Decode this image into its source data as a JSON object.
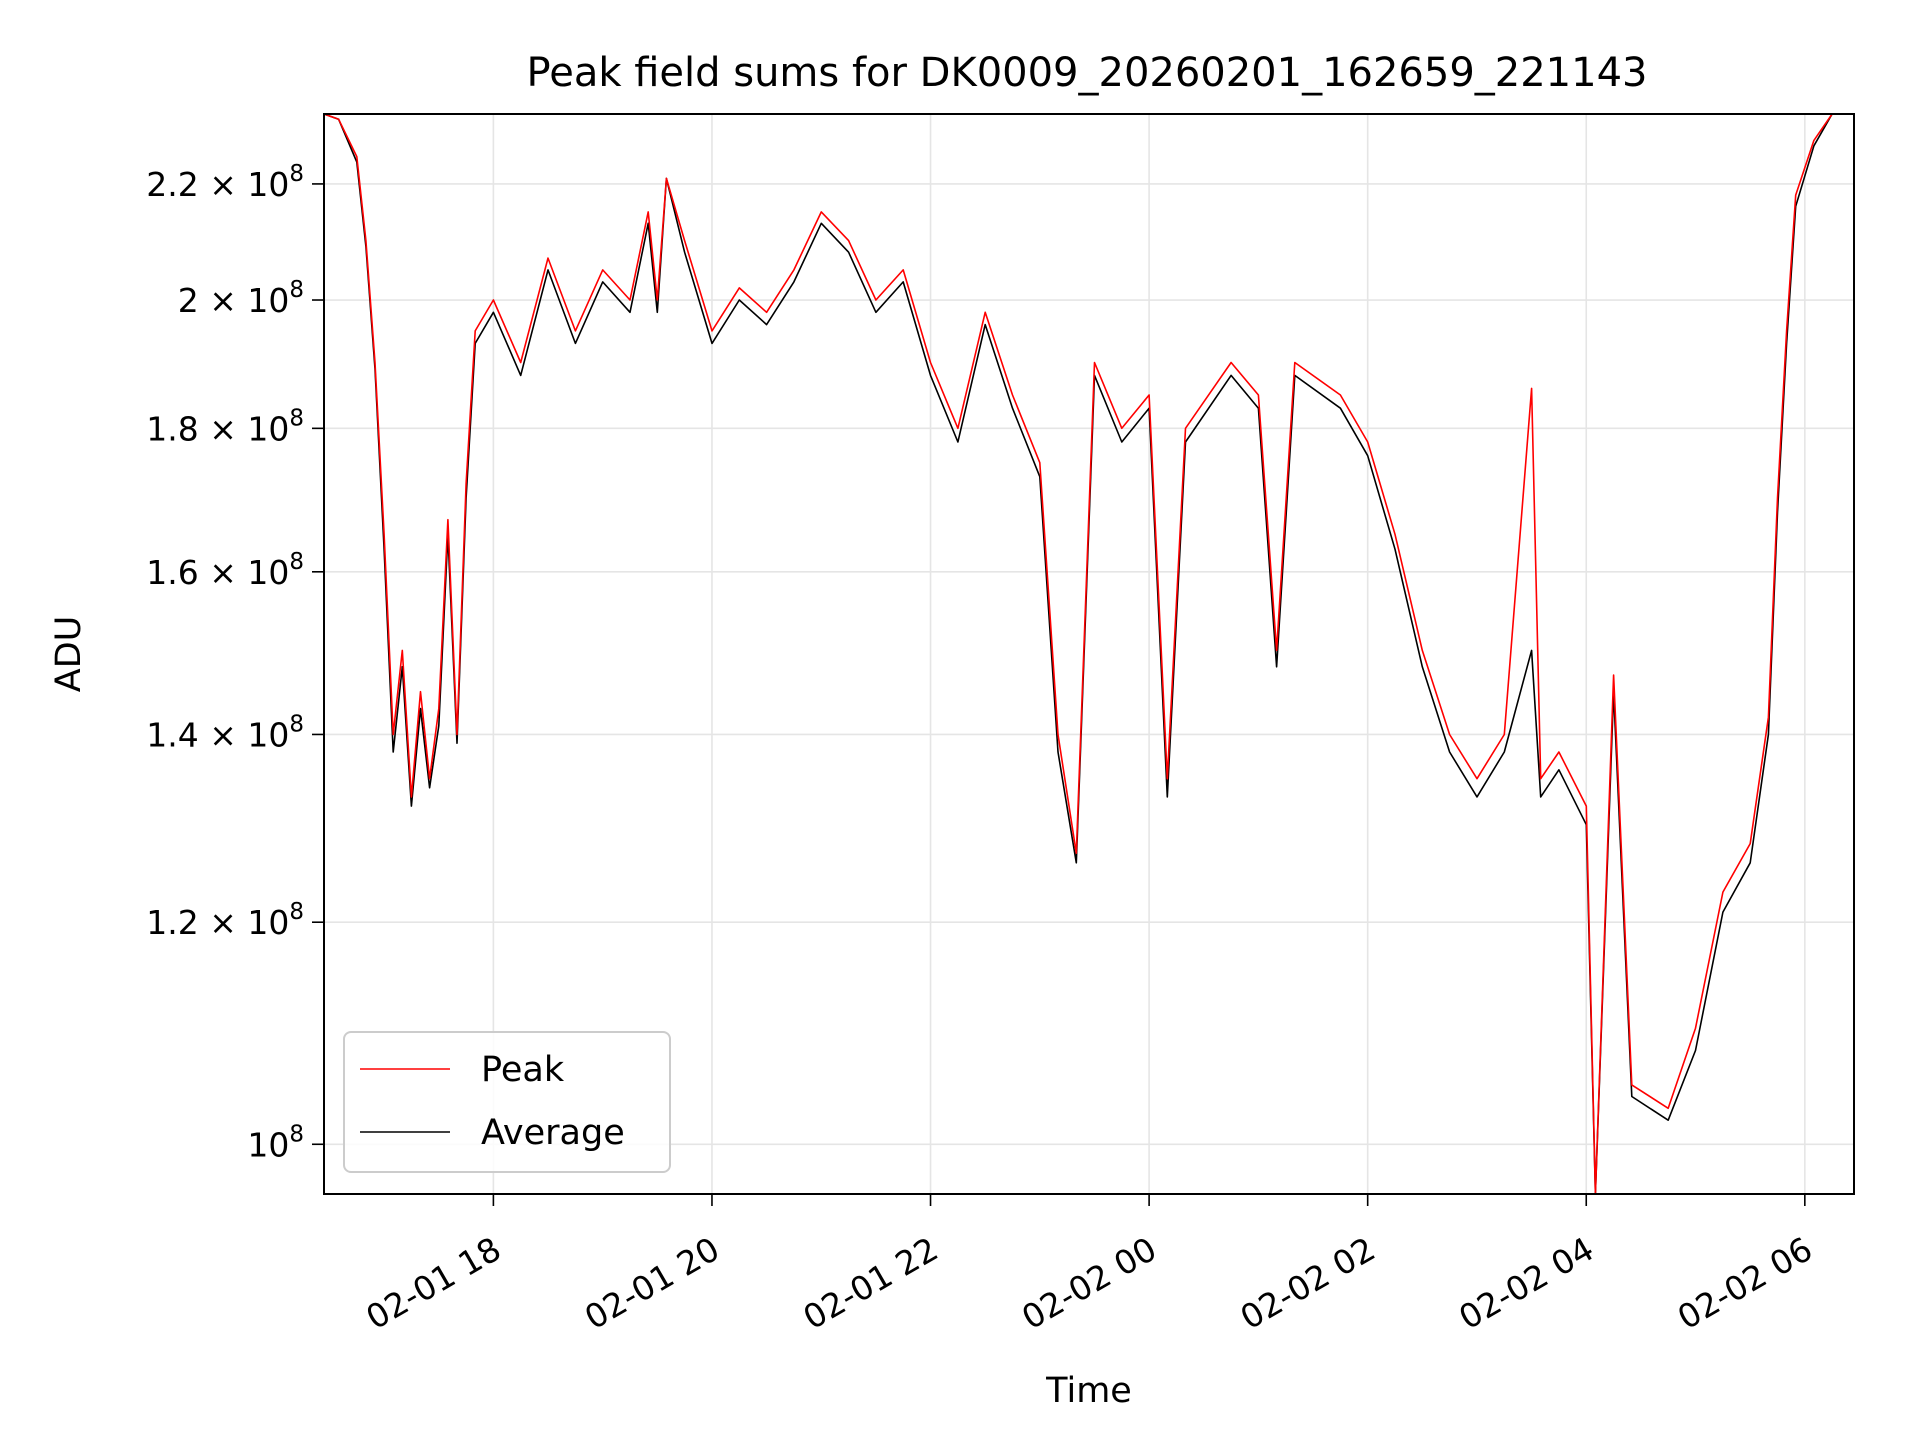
{
  "chart_data": {
    "type": "line",
    "title": "Peak field sums for DK0009_20260201_162659_221143",
    "xlabel": "Time",
    "ylabel": "ADU",
    "y_scale": "log",
    "grid": true,
    "legend_position": "lower-left",
    "x_range": [
      "2026-02-01 16:27",
      "2026-02-02 06:27"
    ],
    "y_range": [
      96000000,
      233000000
    ],
    "x_ticks": [
      {
        "value": "2026-02-01 18:00",
        "label": "02-01 18"
      },
      {
        "value": "2026-02-01 20:00",
        "label": "02-01 20"
      },
      {
        "value": "2026-02-01 22:00",
        "label": "02-01 22"
      },
      {
        "value": "2026-02-02 00:00",
        "label": "02-02 00"
      },
      {
        "value": "2026-02-02 02:00",
        "label": "02-02 02"
      },
      {
        "value": "2026-02-02 04:00",
        "label": "02-02 04"
      },
      {
        "value": "2026-02-02 06:00",
        "label": "02-02 06"
      }
    ],
    "y_ticks": [
      {
        "value": 100000000,
        "mantissa": "",
        "exponent": "8"
      },
      {
        "value": 120000000,
        "mantissa": "1.2",
        "exponent": "8"
      },
      {
        "value": 140000000,
        "mantissa": "1.4",
        "exponent": "8"
      },
      {
        "value": 160000000,
        "mantissa": "1.6",
        "exponent": "8"
      },
      {
        "value": 180000000,
        "mantissa": "1.8",
        "exponent": "8"
      },
      {
        "value": 200000000,
        "mantissa": "2",
        "exponent": "8"
      },
      {
        "value": 220000000,
        "mantissa": "2.2",
        "exponent": "8"
      }
    ],
    "series": [
      {
        "name": "Peak",
        "color": "#ff0000",
        "points": [
          [
            "2026-02-01 16:27",
            233000000
          ],
          [
            "2026-02-01 16:35",
            232000000
          ],
          [
            "2026-02-01 16:45",
            225000000
          ],
          [
            "2026-02-01 16:50",
            210000000
          ],
          [
            "2026-02-01 16:55",
            190000000
          ],
          [
            "2026-02-01 17:00",
            165000000
          ],
          [
            "2026-02-01 17:05",
            140000000
          ],
          [
            "2026-02-01 17:10",
            150000000
          ],
          [
            "2026-02-01 17:15",
            133000000
          ],
          [
            "2026-02-01 17:20",
            145000000
          ],
          [
            "2026-02-01 17:25",
            135000000
          ],
          [
            "2026-02-01 17:30",
            143000000
          ],
          [
            "2026-02-01 17:35",
            167000000
          ],
          [
            "2026-02-01 17:40",
            140000000
          ],
          [
            "2026-02-01 17:45",
            172000000
          ],
          [
            "2026-02-01 17:50",
            195000000
          ],
          [
            "2026-02-01 18:00",
            200000000
          ],
          [
            "2026-02-01 18:15",
            190000000
          ],
          [
            "2026-02-01 18:30",
            207000000
          ],
          [
            "2026-02-01 18:45",
            195000000
          ],
          [
            "2026-02-01 19:00",
            205000000
          ],
          [
            "2026-02-01 19:15",
            200000000
          ],
          [
            "2026-02-01 19:25",
            215000000
          ],
          [
            "2026-02-01 19:30",
            200000000
          ],
          [
            "2026-02-01 19:35",
            221000000
          ],
          [
            "2026-02-01 19:45",
            210000000
          ],
          [
            "2026-02-01 20:00",
            195000000
          ],
          [
            "2026-02-01 20:15",
            202000000
          ],
          [
            "2026-02-01 20:30",
            198000000
          ],
          [
            "2026-02-01 20:45",
            205000000
          ],
          [
            "2026-02-01 21:00",
            215000000
          ],
          [
            "2026-02-01 21:15",
            210000000
          ],
          [
            "2026-02-01 21:30",
            200000000
          ],
          [
            "2026-02-01 21:45",
            205000000
          ],
          [
            "2026-02-01 22:00",
            190000000
          ],
          [
            "2026-02-01 22:15",
            180000000
          ],
          [
            "2026-02-01 22:30",
            198000000
          ],
          [
            "2026-02-01 22:45",
            185000000
          ],
          [
            "2026-02-01 23:00",
            175000000
          ],
          [
            "2026-02-01 23:10",
            140000000
          ],
          [
            "2026-02-01 23:20",
            127000000
          ],
          [
            "2026-02-01 23:30",
            190000000
          ],
          [
            "2026-02-01 23:45",
            180000000
          ],
          [
            "2026-02-02 00:00",
            185000000
          ],
          [
            "2026-02-02 00:10",
            135000000
          ],
          [
            "2026-02-02 00:20",
            180000000
          ],
          [
            "2026-02-02 00:45",
            190000000
          ],
          [
            "2026-02-02 01:00",
            185000000
          ],
          [
            "2026-02-02 01:10",
            150000000
          ],
          [
            "2026-02-02 01:20",
            190000000
          ],
          [
            "2026-02-02 01:45",
            185000000
          ],
          [
            "2026-02-02 02:00",
            178000000
          ],
          [
            "2026-02-02 02:15",
            165000000
          ],
          [
            "2026-02-02 02:30",
            150000000
          ],
          [
            "2026-02-02 02:45",
            140000000
          ],
          [
            "2026-02-02 03:00",
            135000000
          ],
          [
            "2026-02-02 03:15",
            140000000
          ],
          [
            "2026-02-02 03:30",
            186000000
          ],
          [
            "2026-02-02 03:35",
            135000000
          ],
          [
            "2026-02-02 03:45",
            138000000
          ],
          [
            "2026-02-02 04:00",
            132000000
          ],
          [
            "2026-02-02 04:05",
            96000000
          ],
          [
            "2026-02-02 04:15",
            147000000
          ],
          [
            "2026-02-02 04:25",
            105000000
          ],
          [
            "2026-02-02 04:45",
            103000000
          ],
          [
            "2026-02-02 05:00",
            110000000
          ],
          [
            "2026-02-02 05:15",
            123000000
          ],
          [
            "2026-02-02 05:30",
            128000000
          ],
          [
            "2026-02-02 05:40",
            142000000
          ],
          [
            "2026-02-02 05:45",
            170000000
          ],
          [
            "2026-02-02 05:50",
            195000000
          ],
          [
            "2026-02-02 05:55",
            218000000
          ],
          [
            "2026-02-02 06:05",
            228000000
          ],
          [
            "2026-02-02 06:15",
            233000000
          ]
        ]
      },
      {
        "name": "Average",
        "color": "#000000",
        "points": [
          [
            "2026-02-01 16:27",
            233000000
          ],
          [
            "2026-02-01 16:35",
            232000000
          ],
          [
            "2026-02-01 16:45",
            224000000
          ],
          [
            "2026-02-01 16:50",
            209000000
          ],
          [
            "2026-02-01 16:55",
            189000000
          ],
          [
            "2026-02-01 17:00",
            163000000
          ],
          [
            "2026-02-01 17:05",
            138000000
          ],
          [
            "2026-02-01 17:10",
            148000000
          ],
          [
            "2026-02-01 17:15",
            132000000
          ],
          [
            "2026-02-01 17:20",
            143000000
          ],
          [
            "2026-02-01 17:25",
            134000000
          ],
          [
            "2026-02-01 17:30",
            141000000
          ],
          [
            "2026-02-01 17:35",
            165000000
          ],
          [
            "2026-02-01 17:40",
            139000000
          ],
          [
            "2026-02-01 17:45",
            170000000
          ],
          [
            "2026-02-01 17:50",
            193000000
          ],
          [
            "2026-02-01 18:00",
            198000000
          ],
          [
            "2026-02-01 18:15",
            188000000
          ],
          [
            "2026-02-01 18:30",
            205000000
          ],
          [
            "2026-02-01 18:45",
            193000000
          ],
          [
            "2026-02-01 19:00",
            203000000
          ],
          [
            "2026-02-01 19:15",
            198000000
          ],
          [
            "2026-02-01 19:25",
            213000000
          ],
          [
            "2026-02-01 19:30",
            198000000
          ],
          [
            "2026-02-01 19:35",
            221000000
          ],
          [
            "2026-02-01 19:45",
            208000000
          ],
          [
            "2026-02-01 20:00",
            193000000
          ],
          [
            "2026-02-01 20:15",
            200000000
          ],
          [
            "2026-02-01 20:30",
            196000000
          ],
          [
            "2026-02-01 20:45",
            203000000
          ],
          [
            "2026-02-01 21:00",
            213000000
          ],
          [
            "2026-02-01 21:15",
            208000000
          ],
          [
            "2026-02-01 21:30",
            198000000
          ],
          [
            "2026-02-01 21:45",
            203000000
          ],
          [
            "2026-02-01 22:00",
            188000000
          ],
          [
            "2026-02-01 22:15",
            178000000
          ],
          [
            "2026-02-01 22:30",
            196000000
          ],
          [
            "2026-02-01 22:45",
            183000000
          ],
          [
            "2026-02-01 23:00",
            173000000
          ],
          [
            "2026-02-01 23:10",
            138000000
          ],
          [
            "2026-02-01 23:20",
            126000000
          ],
          [
            "2026-02-01 23:30",
            188000000
          ],
          [
            "2026-02-01 23:45",
            178000000
          ],
          [
            "2026-02-02 00:00",
            183000000
          ],
          [
            "2026-02-02 00:10",
            133000000
          ],
          [
            "2026-02-02 00:20",
            178000000
          ],
          [
            "2026-02-02 00:45",
            188000000
          ],
          [
            "2026-02-02 01:00",
            183000000
          ],
          [
            "2026-02-02 01:10",
            148000000
          ],
          [
            "2026-02-02 01:20",
            188000000
          ],
          [
            "2026-02-02 01:45",
            183000000
          ],
          [
            "2026-02-02 02:00",
            176000000
          ],
          [
            "2026-02-02 02:15",
            163000000
          ],
          [
            "2026-02-02 02:30",
            148000000
          ],
          [
            "2026-02-02 02:45",
            138000000
          ],
          [
            "2026-02-02 03:00",
            133000000
          ],
          [
            "2026-02-02 03:15",
            138000000
          ],
          [
            "2026-02-02 03:30",
            150000000
          ],
          [
            "2026-02-02 03:35",
            133000000
          ],
          [
            "2026-02-02 03:45",
            136000000
          ],
          [
            "2026-02-02 04:00",
            130000000
          ],
          [
            "2026-02-02 04:05",
            96000000
          ],
          [
            "2026-02-02 04:15",
            145000000
          ],
          [
            "2026-02-02 04:25",
            104000000
          ],
          [
            "2026-02-02 04:45",
            102000000
          ],
          [
            "2026-02-02 05:00",
            108000000
          ],
          [
            "2026-02-02 05:15",
            121000000
          ],
          [
            "2026-02-02 05:30",
            126000000
          ],
          [
            "2026-02-02 05:40",
            140000000
          ],
          [
            "2026-02-02 05:45",
            168000000
          ],
          [
            "2026-02-02 05:50",
            193000000
          ],
          [
            "2026-02-02 05:55",
            216000000
          ],
          [
            "2026-02-02 06:05",
            227000000
          ],
          [
            "2026-02-02 06:15",
            233000000
          ]
        ]
      }
    ]
  }
}
